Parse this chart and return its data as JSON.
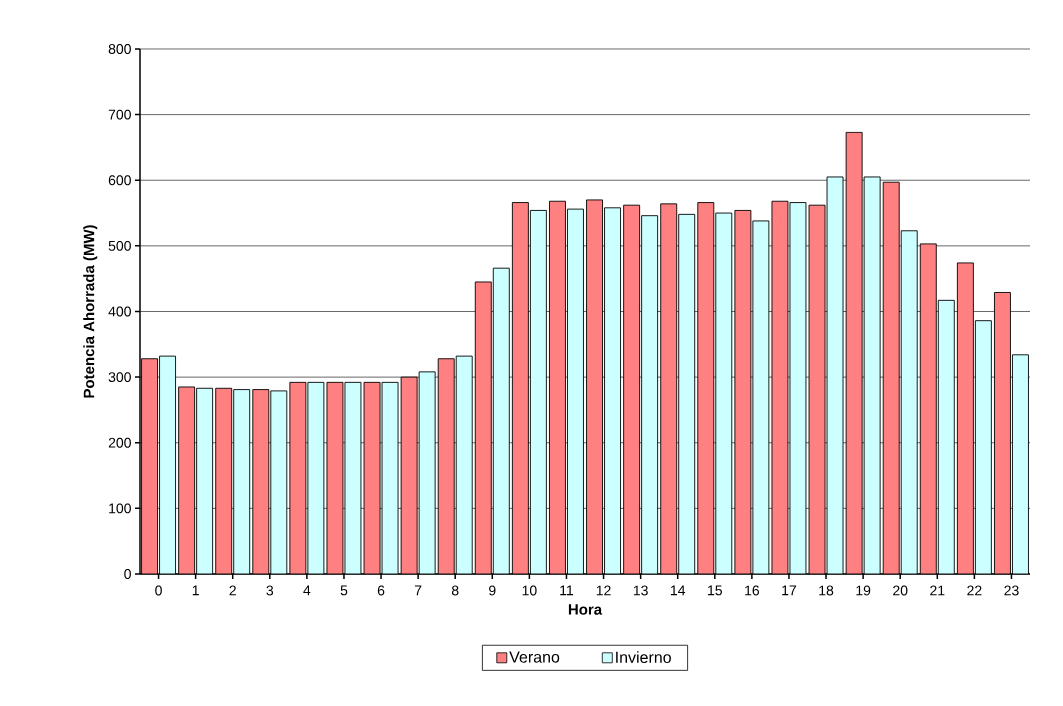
{
  "chart_data": {
    "type": "bar",
    "xlabel": "Hora",
    "ylabel": "Potencia Ahorrada (MW)",
    "categories": [
      "0",
      "1",
      "2",
      "3",
      "4",
      "5",
      "6",
      "7",
      "8",
      "9",
      "10",
      "11",
      "12",
      "13",
      "14",
      "15",
      "16",
      "17",
      "18",
      "19",
      "20",
      "21",
      "22",
      "23"
    ],
    "series": [
      {
        "name": "Verano",
        "color": "#ff8080",
        "values": [
          328,
          285,
          283,
          281,
          292,
          292,
          292,
          300,
          328,
          445,
          566,
          568,
          570,
          562,
          564,
          566,
          554,
          568,
          562,
          673,
          597,
          503,
          474,
          429
        ]
      },
      {
        "name": "Invierno",
        "color": "#ccffff",
        "values": [
          332,
          283,
          281,
          279,
          292,
          292,
          292,
          308,
          332,
          466,
          554,
          556,
          558,
          546,
          548,
          550,
          538,
          566,
          605,
          605,
          523,
          417,
          386,
          334
        ]
      }
    ],
    "ylim": [
      0,
      800
    ],
    "yticks": [
      0,
      100,
      200,
      300,
      400,
      500,
      600,
      700,
      800
    ],
    "grid": "y",
    "legend": "bottom"
  }
}
